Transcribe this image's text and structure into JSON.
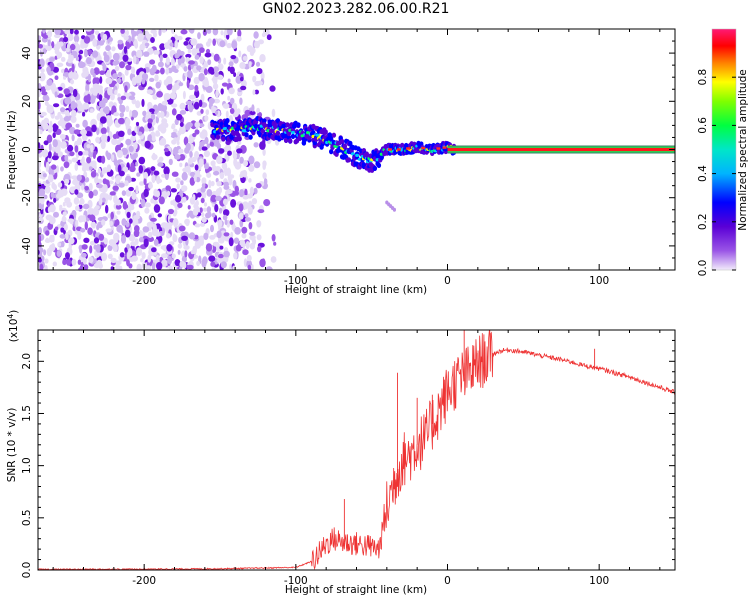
{
  "title": "GN02.2023.282.06.00.R21",
  "colors": {
    "snr_line": "#ee3333",
    "axes": "#000000",
    "colormap": [
      "#ebe3f7",
      "#8a2be2",
      "#5a00d6",
      "#0000ff",
      "#00ccff",
      "#00ff66",
      "#33ff00",
      "#ffff00",
      "#ff8800",
      "#ff0000",
      "#ff0066"
    ]
  },
  "chart_data": [
    {
      "type": "heatmap",
      "title": "",
      "xlabel": "Height of straight line (km)",
      "ylabel": "Frequency (Hz)",
      "xlim": [
        -270,
        150
      ],
      "ylim": [
        -50,
        50
      ],
      "xticks": [
        "-200",
        "-100",
        "0",
        "100"
      ],
      "yticks": [
        "40",
        "20",
        "0",
        "-20",
        "-40"
      ],
      "colorbar": {
        "label": "Normalized spectral amplitude",
        "range": [
          0,
          1
        ],
        "ticks": [
          "0.0",
          "0.2",
          "0.4",
          "0.6",
          "0.8"
        ]
      },
      "features": {
        "noise_region_x": [
          -270,
          -112
        ],
        "noise_fade_x": [
          -155,
          -112
        ],
        "ridge": {
          "x": [
            -155,
            -140,
            -125,
            -110,
            -100,
            -90,
            -80,
            -70,
            -60,
            -50,
            -45,
            -40,
            -30,
            -20,
            -10,
            0,
            5
          ],
          "y": [
            8,
            8,
            9,
            8,
            7,
            6,
            4,
            1,
            -3,
            -5,
            -3,
            0,
            0,
            1,
            0,
            1,
            0
          ]
        },
        "carrier_line": {
          "x": [
            0,
            150
          ],
          "y": 0
        },
        "artifact": {
          "x": [
            -40,
            -35
          ],
          "y": [
            -25,
            -22
          ]
        }
      }
    },
    {
      "type": "line",
      "title": "",
      "xlabel": "Height of straight line (km)",
      "ylabel": "SNR (10 * v/v)",
      "scale_label": "(x10",
      "scale_exponent": "4",
      "scale_suffix": ")",
      "xlim": [
        -270,
        150
      ],
      "ylim": [
        0,
        23000
      ],
      "xticks": [
        "-200",
        "-100",
        "0",
        "100"
      ],
      "yticks": [
        "0.0",
        "0.5",
        "1.0",
        "1.5",
        "2.0"
      ],
      "series": [
        {
          "values": {
            "x": [
              -270,
              -200,
              -150,
              -100,
              -90,
              -85,
              -80,
              -75,
              -70,
              -65,
              -60,
              -55,
              -50,
              -45,
              -40,
              -35,
              -30,
              -25,
              -20,
              -15,
              -10,
              -5,
              0,
              5,
              10,
              15,
              20,
              25,
              30,
              35,
              40,
              45,
              50,
              60,
              70,
              80,
              90,
              100,
              110,
              120,
              130,
              140,
              150
            ],
            "y": [
              60,
              80,
              120,
              250,
              800,
              1500,
              2500,
              3000,
              2700,
              2600,
              2500,
              2400,
              2200,
              2000,
              6000,
              8500,
              10500,
              11000,
              12000,
              12500,
              14000,
              15500,
              17000,
              18000,
              18500,
              19000,
              19800,
              20300,
              20700,
              21000,
              21100,
              21000,
              20900,
              20600,
              20300,
              20000,
              19600,
              19300,
              18900,
              18500,
              18000,
              17500,
              17000
            ]
          },
          "spikes": [
            {
              "x": -68,
              "y": 6800
            },
            {
              "x": -33,
              "y": 18900
            },
            {
              "x": -20,
              "y": 16500
            },
            {
              "x": -10,
              "y": 16800
            },
            {
              "x": 11,
              "y": 23000
            },
            {
              "x": 20,
              "y": 20800
            },
            {
              "x": 97,
              "y": 21200
            }
          ]
        }
      ]
    }
  ]
}
